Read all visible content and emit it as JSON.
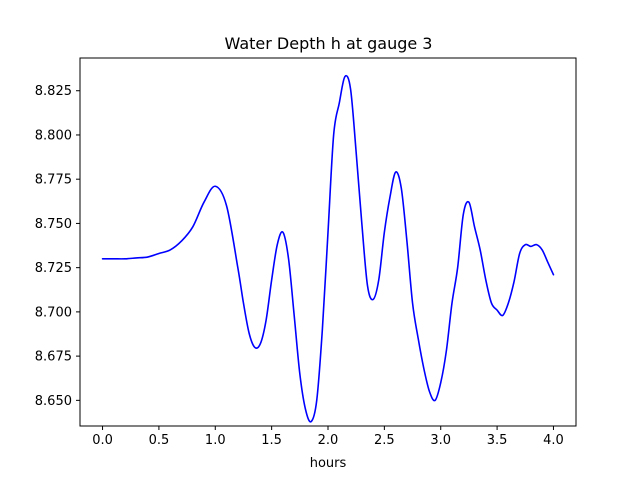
{
  "chart_data": {
    "type": "line",
    "title": "Water Depth h at gauge 3",
    "xlabel": "hours",
    "ylabel": "",
    "xlim": [
      -0.2,
      4.2
    ],
    "ylim": [
      8.6355,
      8.8435
    ],
    "xticks": [
      0.0,
      0.5,
      1.0,
      1.5,
      2.0,
      2.5,
      3.0,
      3.5,
      4.0
    ],
    "xtick_labels": [
      "0.0",
      "0.5",
      "1.0",
      "1.5",
      "2.0",
      "2.5",
      "3.0",
      "3.5",
      "4.0"
    ],
    "yticks": [
      8.65,
      8.675,
      8.7,
      8.725,
      8.75,
      8.775,
      8.8,
      8.825
    ],
    "ytick_labels": [
      "8.650",
      "8.675",
      "8.700",
      "8.725",
      "8.750",
      "8.775",
      "8.800",
      "8.825"
    ],
    "grid": false,
    "series": [
      {
        "color": "#0000ff",
        "x": [
          0.0,
          0.1,
          0.2,
          0.3,
          0.4,
          0.5,
          0.6,
          0.7,
          0.8,
          0.9,
          1.0,
          1.1,
          1.2,
          1.25,
          1.3,
          1.35,
          1.4,
          1.45,
          1.5,
          1.55,
          1.6,
          1.65,
          1.7,
          1.75,
          1.8,
          1.85,
          1.9,
          1.95,
          2.0,
          2.05,
          2.1,
          2.15,
          2.2,
          2.25,
          2.3,
          2.35,
          2.4,
          2.45,
          2.5,
          2.55,
          2.6,
          2.65,
          2.7,
          2.75,
          2.8,
          2.85,
          2.9,
          2.95,
          3.0,
          3.05,
          3.1,
          3.15,
          3.2,
          3.25,
          3.3,
          3.35,
          3.4,
          3.45,
          3.5,
          3.55,
          3.6,
          3.65,
          3.7,
          3.75,
          3.8,
          3.85,
          3.9,
          3.95,
          4.0
        ],
        "y": [
          8.73,
          8.73,
          8.73,
          8.7305,
          8.731,
          8.733,
          8.735,
          8.74,
          8.748,
          8.762,
          8.771,
          8.76,
          8.725,
          8.705,
          8.688,
          8.68,
          8.682,
          8.695,
          8.718,
          8.738,
          8.745,
          8.73,
          8.698,
          8.665,
          8.645,
          8.638,
          8.65,
          8.69,
          8.745,
          8.8,
          8.818,
          8.833,
          8.826,
          8.79,
          8.75,
          8.715,
          8.707,
          8.718,
          8.745,
          8.765,
          8.779,
          8.77,
          8.74,
          8.705,
          8.685,
          8.668,
          8.655,
          8.65,
          8.66,
          8.678,
          8.705,
          8.725,
          8.755,
          8.762,
          8.748,
          8.735,
          8.718,
          8.705,
          8.701,
          8.698,
          8.705,
          8.717,
          8.733,
          8.738,
          8.737,
          8.738,
          8.735,
          8.728,
          8.721
        ]
      }
    ]
  }
}
